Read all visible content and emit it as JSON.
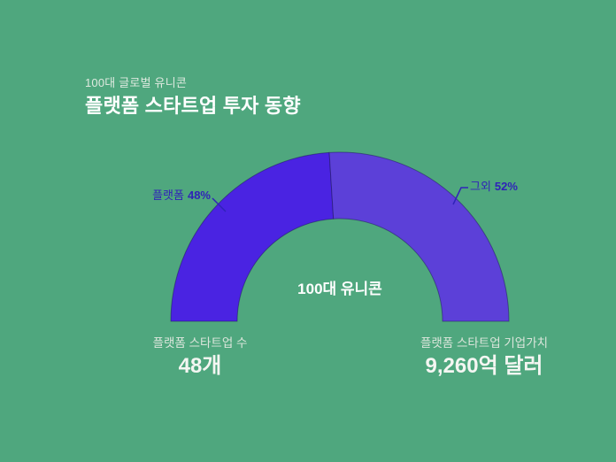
{
  "background": "#4FA77E",
  "header": {
    "eyebrow": "100대 글로벌 유니콘",
    "title": "플랫폼 스타트업 투자 동향"
  },
  "chart_data": {
    "type": "pie",
    "variant": "semi-donut",
    "title": "플랫폼 스타트업 투자 동향",
    "subtitle": "100대 글로벌 유니콘",
    "categories": [
      "플랫폼",
      "그외"
    ],
    "values": [
      48,
      52
    ],
    "unit": "%",
    "colors": [
      "#4A23E2",
      "#5C40D8"
    ],
    "label_color": "#3023B8",
    "center_label": "100대 유니콘",
    "callouts": [
      {
        "name": "플랫폼",
        "pct": "48%"
      },
      {
        "name": "그외",
        "pct": "52%"
      }
    ],
    "legend_position": "callout",
    "start_angle": 180,
    "end_angle": 0
  },
  "stats": [
    {
      "caption": "플랫폼 스타트업 수",
      "value": "48개"
    },
    {
      "caption": "플랫폼 스타트업 기업가치",
      "value": "9,260억 달러"
    }
  ]
}
